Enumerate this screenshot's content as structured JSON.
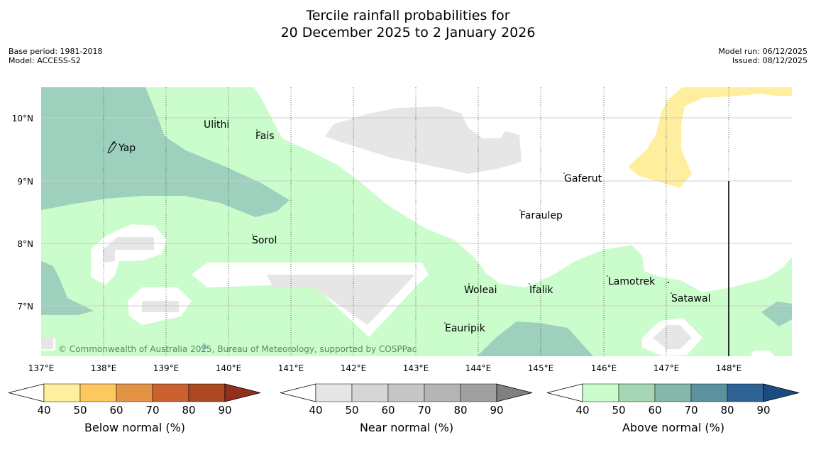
{
  "title": {
    "line1": "Tercile rainfall probabilities for",
    "line2": "20 December 2025 to 2 January 2026"
  },
  "meta": {
    "base_period": "Base period: 1981-2018",
    "model": "Model: ACCESS-S2",
    "model_run": "Model run: 06/12/2025",
    "issued": "Issued: 08/12/2025"
  },
  "map": {
    "x_ticks": [
      "137°E",
      "138°E",
      "139°E",
      "140°E",
      "141°E",
      "142°E",
      "143°E",
      "144°E",
      "145°E",
      "146°E",
      "147°E",
      "148°E"
    ],
    "y_ticks": [
      "10°N",
      "9°N",
      "8°N",
      "7°N"
    ],
    "places": [
      {
        "name": "Yap"
      },
      {
        "name": "Ulithi"
      },
      {
        "name": "Fais"
      },
      {
        "name": "Gaferut"
      },
      {
        "name": "Faraulep"
      },
      {
        "name": "Sorol"
      },
      {
        "name": "Woleai"
      },
      {
        "name": "Ifalik"
      },
      {
        "name": "Lamotrek"
      },
      {
        "name": "Satawal"
      },
      {
        "name": "Eauripik"
      }
    ],
    "copyright": "© Commonwealth of Australia 2025, Bureau of Meteorology, supported by COSPPac"
  },
  "colorbars": [
    {
      "label": "Below normal (%)",
      "ticks": [
        "40",
        "50",
        "60",
        "70",
        "80",
        "90"
      ],
      "colors": [
        "#ffffff",
        "#ffee9e",
        "#fdc860",
        "#e29343",
        "#cb6130",
        "#ac4923",
        "#932f1d"
      ]
    },
    {
      "label": "Near normal (%)",
      "ticks": [
        "40",
        "50",
        "60",
        "70",
        "80",
        "90"
      ],
      "colors": [
        "#ffffff",
        "#e6e6e6",
        "#d6d6d6",
        "#c6c6c6",
        "#b4b4b4",
        "#a0a0a0",
        "#808080"
      ]
    },
    {
      "label": "Above normal (%)",
      "ticks": [
        "40",
        "50",
        "60",
        "70",
        "80",
        "90"
      ],
      "colors": [
        "#ffffff",
        "#cbfccb",
        "#a5d7b4",
        "#84b8ac",
        "#5c92a0",
        "#2f6396",
        "#1a4c80"
      ]
    }
  ],
  "colors": {
    "above_50": "#cbfccb",
    "above_60": "#9dd0bd",
    "near_50": "#e6e6e6",
    "below_50": "#ffee9e"
  }
}
